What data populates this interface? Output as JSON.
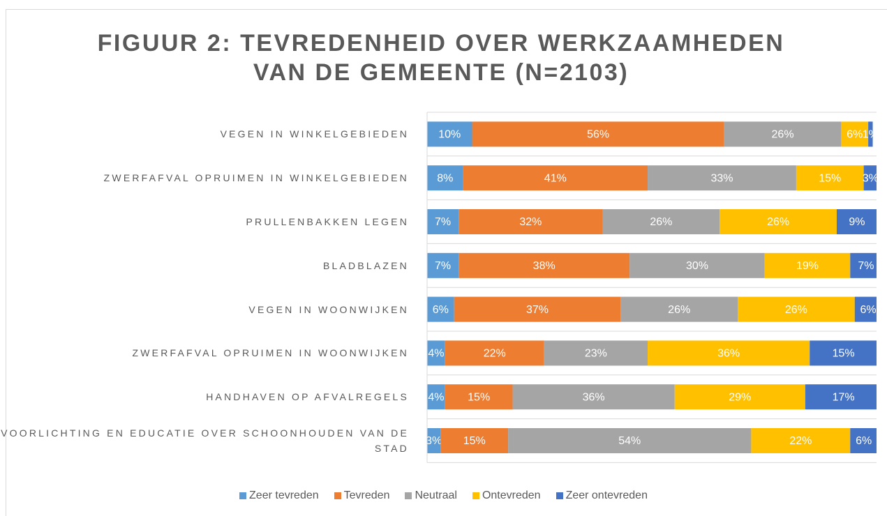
{
  "chart_data": {
    "type": "stacked_barh",
    "title": [
      "FIGUUR 2: TEVREDENHEID OVER WERKZAAMHEDEN",
      "VAN DE GEMEENTE (N=2103)"
    ],
    "categories": [
      "VEGEN IN WINKELGEBIEDEN",
      "ZWERFAFVAL OPRUIMEN IN WINKELGEBIEDEN",
      "PRULLENBAKKEN LEGEN",
      "BLADBLAZEN",
      "VEGEN IN WOONWIJKEN",
      "ZWERFAFVAL OPRUIMEN IN WOONWIJKEN",
      "HANDHAVEN OP AFVALREGELS",
      "VOORLICHTING EN EDUCATIE OVER SCHOONHOUDEN VAN DE STAD"
    ],
    "series": [
      {
        "name": "Zeer tevreden",
        "color": "#5b9bd5",
        "values": [
          10,
          8,
          7,
          7,
          6,
          4,
          4,
          3
        ],
        "value_labels": [
          "10%",
          "8%",
          "7%",
          "7%",
          "6%",
          "4%",
          "4%",
          "3%"
        ]
      },
      {
        "name": "Tevreden",
        "color": "#ed7d31",
        "values": [
          56,
          41,
          32,
          38,
          37,
          22,
          15,
          15
        ],
        "value_labels": [
          "56%",
          "41%",
          "32%",
          "38%",
          "37%",
          "22%",
          "15%",
          "15%"
        ]
      },
      {
        "name": "Neutraal",
        "color": "#a5a5a5",
        "values": [
          26,
          33,
          26,
          30,
          26,
          23,
          36,
          54
        ],
        "value_labels": [
          "26%",
          "33%",
          "26%",
          "30%",
          "26%",
          "23%",
          "36%",
          "54%"
        ]
      },
      {
        "name": "Ontevreden",
        "color": "#ffc000",
        "values": [
          6,
          15,
          26,
          19,
          26,
          36,
          29,
          22
        ],
        "value_labels": [
          "6%",
          "15%",
          "26%",
          "19%",
          "26%",
          "36%",
          "29%",
          "22%"
        ]
      },
      {
        "name": "Zeer ontevreden",
        "color": "#4472c4",
        "values": [
          1,
          3,
          9,
          7,
          6,
          15,
          17,
          6
        ],
        "value_labels": [
          "1%",
          "3%",
          "9%",
          "7%",
          "6%",
          "15%",
          "17%",
          "6%"
        ]
      }
    ]
  }
}
